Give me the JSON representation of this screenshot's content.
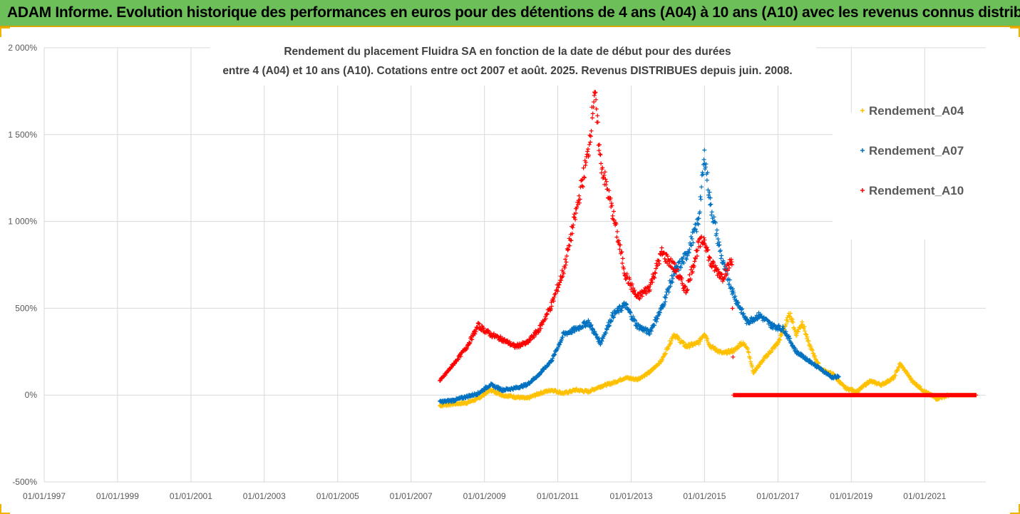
{
  "banner": {
    "title": "ADAM Informe. Evolution historique des performances en euros pour des détentions de 4 ans (A04) à 10 ans (A10) avec les revenus connus distribués"
  },
  "colors": {
    "banner_bg": "#6dbf5a",
    "gridline": "#d9d9d9",
    "A04": "#ffc000",
    "A07": "#0070c0",
    "A10": "#ff0000"
  },
  "chart_data": {
    "type": "scatter",
    "marker": "plus",
    "title_lines": [
      "Rendement du placement Fluidra SA en fonction de la date de début pour des durées",
      "entre 4 (A04) et 10 ans (A10). Cotations entre oct 2007 et août. 2025. Revenus DISTRIBUES depuis juin. 2008."
    ],
    "xlabel": "",
    "ylabel": "",
    "xlim": [
      "1997-01-01",
      "2022-09-01"
    ],
    "ylim": [
      -500,
      2000
    ],
    "x_tick_labels": [
      "01/01/1997",
      "01/01/1999",
      "01/01/2001",
      "01/01/2003",
      "01/01/2005",
      "01/01/2007",
      "01/01/2009",
      "01/01/2011",
      "01/01/2013",
      "01/01/2015",
      "01/01/2017",
      "01/01/2019",
      "01/01/2021"
    ],
    "y_ticks": [
      -500,
      0,
      500,
      1000,
      1500,
      2000
    ],
    "y_tick_labels": [
      "-500%",
      "0%",
      "500%",
      "1 000%",
      "1 500%",
      "2 000%"
    ],
    "grid": true,
    "legend_position": "top-right",
    "series": [
      {
        "name": "Rendement_A04",
        "color": "#ffc000",
        "points": [
          [
            "2007-10-15",
            -60
          ],
          [
            "2008-03-01",
            -50
          ],
          [
            "2008-07-01",
            -45
          ],
          [
            "2008-11-01",
            -20
          ],
          [
            "2009-03-01",
            30
          ],
          [
            "2009-07-01",
            0
          ],
          [
            "2009-11-01",
            -10
          ],
          [
            "2010-03-01",
            -20
          ],
          [
            "2010-07-01",
            10
          ],
          [
            "2010-11-01",
            30
          ],
          [
            "2011-03-01",
            10
          ],
          [
            "2011-07-01",
            30
          ],
          [
            "2011-11-01",
            20
          ],
          [
            "2012-03-01",
            50
          ],
          [
            "2012-07-01",
            70
          ],
          [
            "2012-11-01",
            100
          ],
          [
            "2013-03-01",
            90
          ],
          [
            "2013-07-01",
            130
          ],
          [
            "2013-11-01",
            200
          ],
          [
            "2014-03-01",
            350
          ],
          [
            "2014-07-01",
            280
          ],
          [
            "2014-11-01",
            300
          ],
          [
            "2015-01-01",
            360
          ],
          [
            "2015-03-01",
            280
          ],
          [
            "2015-07-01",
            240
          ],
          [
            "2015-11-01",
            260
          ],
          [
            "2016-01-01",
            300
          ],
          [
            "2016-03-01",
            280
          ],
          [
            "2016-05-01",
            130
          ],
          [
            "2016-09-01",
            220
          ],
          [
            "2017-01-01",
            300
          ],
          [
            "2017-03-01",
            380
          ],
          [
            "2017-05-01",
            470
          ],
          [
            "2017-07-01",
            350
          ],
          [
            "2017-09-01",
            420
          ],
          [
            "2017-11-01",
            300
          ],
          [
            "2018-03-01",
            150
          ],
          [
            "2018-07-01",
            120
          ],
          [
            "2018-11-01",
            40
          ],
          [
            "2019-03-01",
            20
          ],
          [
            "2019-07-01",
            80
          ],
          [
            "2019-11-01",
            60
          ],
          [
            "2020-03-01",
            100
          ],
          [
            "2020-05-01",
            180
          ],
          [
            "2020-09-01",
            80
          ],
          [
            "2021-01-01",
            20
          ],
          [
            "2021-05-01",
            -20
          ],
          [
            "2021-09-01",
            0
          ],
          [
            "2022-06-01",
            0
          ]
        ]
      },
      {
        "name": "Rendement_A07",
        "color": "#0070c0",
        "points": [
          [
            "2007-10-15",
            -40
          ],
          [
            "2008-03-01",
            -30
          ],
          [
            "2008-07-01",
            -10
          ],
          [
            "2008-11-01",
            10
          ],
          [
            "2009-03-01",
            60
          ],
          [
            "2009-07-01",
            30
          ],
          [
            "2009-11-01",
            40
          ],
          [
            "2010-03-01",
            60
          ],
          [
            "2010-07-01",
            120
          ],
          [
            "2010-11-01",
            200
          ],
          [
            "2011-03-01",
            350
          ],
          [
            "2011-07-01",
            380
          ],
          [
            "2011-11-01",
            420
          ],
          [
            "2012-03-01",
            300
          ],
          [
            "2012-07-01",
            460
          ],
          [
            "2012-11-01",
            520
          ],
          [
            "2013-03-01",
            400
          ],
          [
            "2013-07-01",
            360
          ],
          [
            "2013-11-01",
            500
          ],
          [
            "2014-03-01",
            700
          ],
          [
            "2014-07-01",
            800
          ],
          [
            "2014-11-01",
            1000
          ],
          [
            "2015-01-01",
            1380
          ],
          [
            "2015-03-01",
            1100
          ],
          [
            "2015-07-01",
            760
          ],
          [
            "2015-11-01",
            560
          ],
          [
            "2016-03-01",
            420
          ],
          [
            "2016-07-01",
            460
          ],
          [
            "2016-11-01",
            400
          ],
          [
            "2017-03-01",
            380
          ],
          [
            "2017-07-01",
            250
          ],
          [
            "2017-11-01",
            200
          ],
          [
            "2018-03-01",
            150
          ],
          [
            "2018-07-01",
            100
          ],
          [
            "2018-09-01",
            110
          ]
        ]
      },
      {
        "name": "Rendement_A10",
        "color": "#ff0000",
        "points": [
          [
            "2007-10-15",
            80
          ],
          [
            "2008-03-01",
            180
          ],
          [
            "2008-07-01",
            270
          ],
          [
            "2008-11-01",
            400
          ],
          [
            "2009-03-01",
            350
          ],
          [
            "2009-07-01",
            320
          ],
          [
            "2009-11-01",
            280
          ],
          [
            "2010-03-01",
            300
          ],
          [
            "2010-07-01",
            380
          ],
          [
            "2010-11-01",
            520
          ],
          [
            "2011-03-01",
            720
          ],
          [
            "2011-07-01",
            1050
          ],
          [
            "2011-11-01",
            1400
          ],
          [
            "2012-01-01",
            1750
          ],
          [
            "2012-03-01",
            1350
          ],
          [
            "2012-07-01",
            1050
          ],
          [
            "2012-11-01",
            700
          ],
          [
            "2013-03-01",
            560
          ],
          [
            "2013-07-01",
            620
          ],
          [
            "2013-11-01",
            820
          ],
          [
            "2014-03-01",
            740
          ],
          [
            "2014-07-01",
            600
          ],
          [
            "2014-11-01",
            860
          ],
          [
            "2015-01-01",
            900
          ],
          [
            "2015-03-01",
            760
          ],
          [
            "2015-07-01",
            680
          ],
          [
            "2015-10-01",
            780
          ],
          [
            "2015-10-15",
            0
          ],
          [
            "2016-06-01",
            0
          ],
          [
            "2017-06-01",
            0
          ],
          [
            "2018-06-01",
            0
          ],
          [
            "2019-06-01",
            0
          ],
          [
            "2020-06-01",
            0
          ],
          [
            "2021-06-01",
            0
          ],
          [
            "2022-06-01",
            0
          ]
        ]
      }
    ]
  }
}
